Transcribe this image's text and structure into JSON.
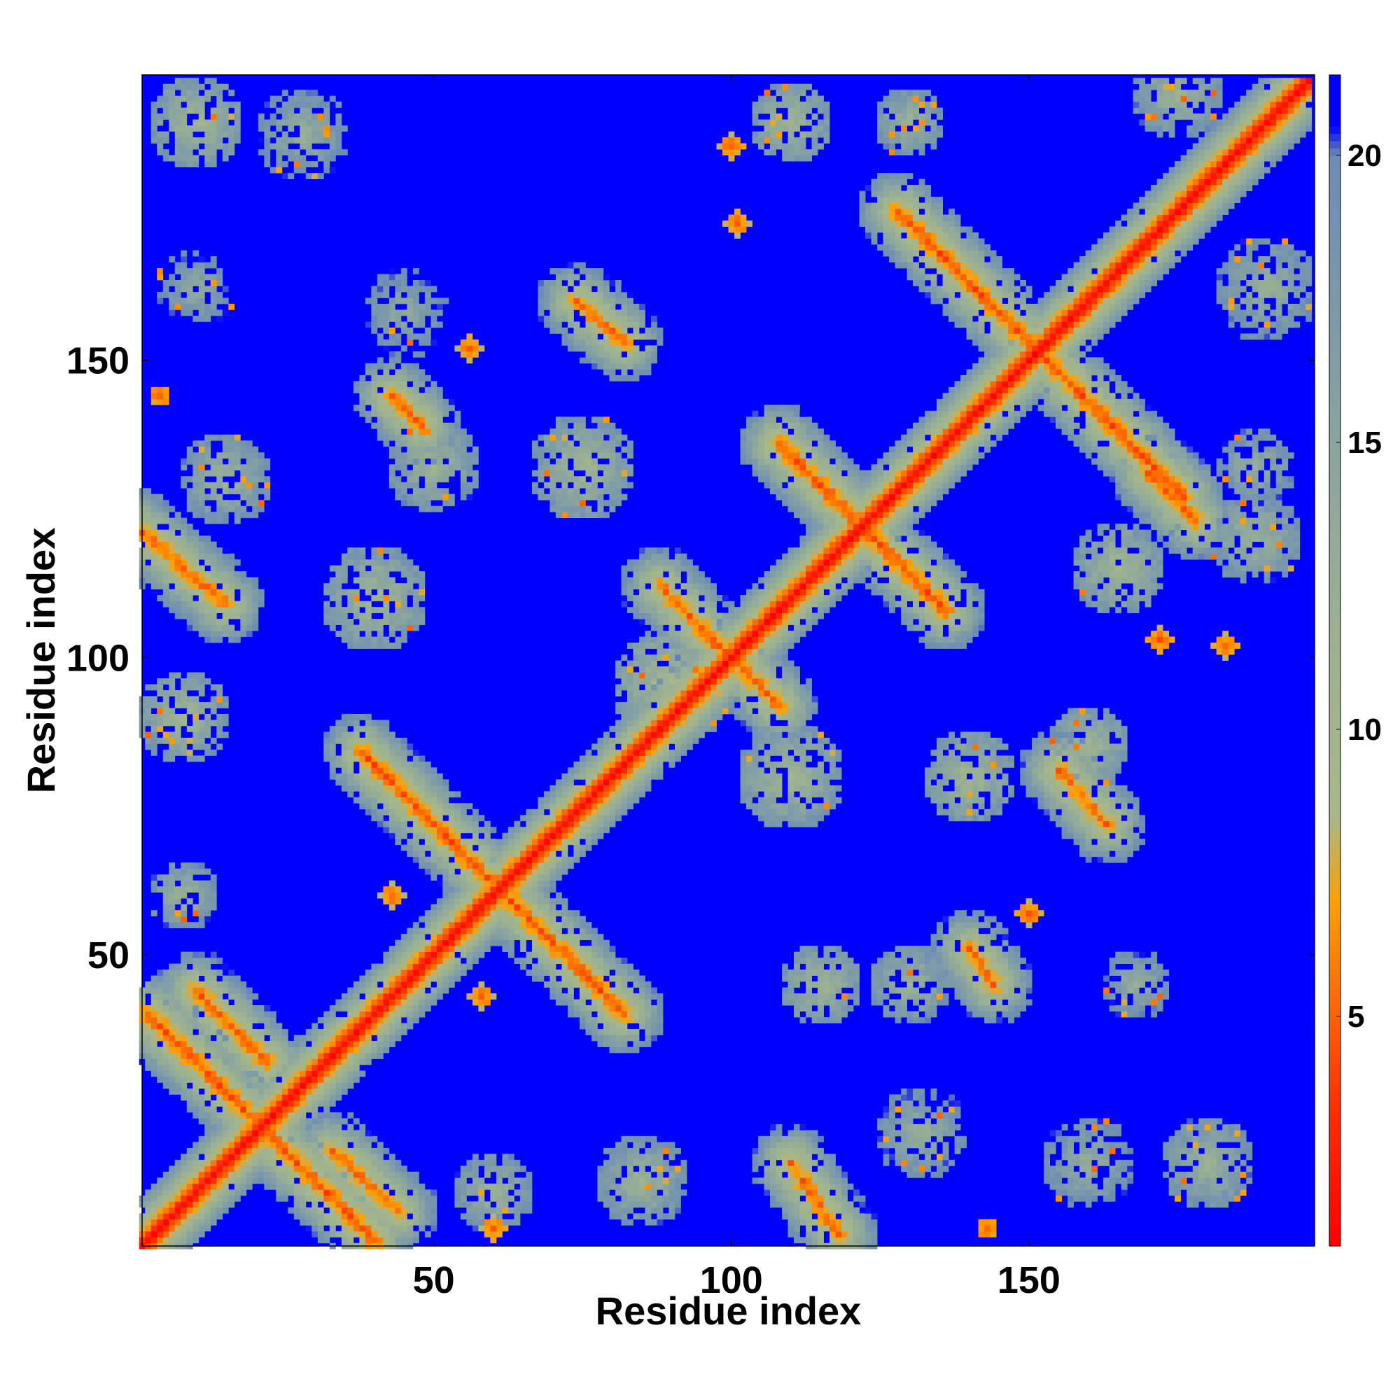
{
  "chart_data": {
    "type": "heatmap",
    "title": "",
    "xlabel": "Residue index",
    "ylabel": "Residue index",
    "xlim": [
      1,
      198
    ],
    "ylim": [
      1,
      198
    ],
    "n_residues": 197,
    "xticks": [
      50,
      100,
      150
    ],
    "yticks": [
      50,
      100,
      150
    ],
    "colorbar": {
      "ticks": [
        5,
        10,
        15,
        20
      ],
      "range": [
        1,
        21.4
      ],
      "stops": [
        {
          "value": 1,
          "color": "#ff0000"
        },
        {
          "value": 3.5,
          "color": "#ff3000"
        },
        {
          "value": 5,
          "color": "#ff6000"
        },
        {
          "value": 7,
          "color": "#ffa000"
        },
        {
          "value": 8.5,
          "color": "#a8b888"
        },
        {
          "value": 12,
          "color": "#9ab092"
        },
        {
          "value": 16,
          "color": "#84a0a4"
        },
        {
          "value": 20,
          "color": "#6d8cb4"
        },
        {
          "value": 20.5,
          "color": "#0000ff"
        }
      ]
    },
    "background_value": 21,
    "diagonal": {
      "start": 1,
      "end": 198
    },
    "contact_segments": [
      {
        "x1": 2,
        "y1": 40,
        "x2": 40,
        "y2": 2,
        "min": 3.5
      },
      {
        "x1": 10,
        "y1": 44,
        "x2": 22,
        "y2": 32,
        "min": 4
      },
      {
        "x1": 33,
        "y1": 17,
        "x2": 44,
        "y2": 7,
        "min": 4
      },
      {
        "x1": 38,
        "y1": 84,
        "x2": 82,
        "y2": 40,
        "min": 3.5
      },
      {
        "x1": 88,
        "y1": 112,
        "x2": 108,
        "y2": 92,
        "min": 4
      },
      {
        "x1": 108,
        "y1": 136,
        "x2": 136,
        "y2": 108,
        "min": 3.5
      },
      {
        "x1": 128,
        "y1": 175,
        "x2": 176,
        "y2": 127,
        "min": 3.5
      },
      {
        "x1": 74,
        "y1": 160,
        "x2": 82,
        "y2": 153,
        "min": 4
      },
      {
        "x1": 110,
        "y1": 15,
        "x2": 118,
        "y2": 3,
        "min": 4
      },
      {
        "x1": 0,
        "y1": 122,
        "x2": 15,
        "y2": 109,
        "min": 4
      },
      {
        "x1": 170,
        "y1": 131,
        "x2": 178,
        "y2": 123,
        "min": 4
      },
      {
        "x1": 155,
        "y1": 81,
        "x2": 163,
        "y2": 72,
        "min": 4
      },
      {
        "x1": 140,
        "y1": 51,
        "x2": 144,
        "y2": 45,
        "min": 4
      },
      {
        "x1": 43,
        "y1": 144,
        "x2": 48,
        "y2": 139,
        "min": 4
      }
    ],
    "contact_blobs": [
      {
        "x": 10,
        "y": 190,
        "w": 8,
        "min": 9
      },
      {
        "x": 28,
        "y": 188,
        "w": 8,
        "min": 11
      },
      {
        "x": 10,
        "y": 162,
        "w": 7,
        "min": 12
      },
      {
        "x": 45,
        "y": 158,
        "w": 8,
        "min": 12
      },
      {
        "x": 75,
        "y": 132,
        "w": 9,
        "min": 9
      },
      {
        "x": 110,
        "y": 190,
        "w": 7,
        "min": 9
      },
      {
        "x": 130,
        "y": 190,
        "w": 6,
        "min": 10
      },
      {
        "x": 175,
        "y": 195,
        "w": 8,
        "min": 10
      },
      {
        "x": 190,
        "y": 162,
        "w": 9,
        "min": 11
      },
      {
        "x": 165,
        "y": 115,
        "w": 8,
        "min": 9
      },
      {
        "x": 188,
        "y": 120,
        "w": 8,
        "min": 10
      },
      {
        "x": 188,
        "y": 132,
        "w": 7,
        "min": 11
      },
      {
        "x": 110,
        "y": 80,
        "w": 9,
        "min": 9
      },
      {
        "x": 140,
        "y": 80,
        "w": 8,
        "min": 9
      },
      {
        "x": 160,
        "y": 85,
        "w": 7,
        "min": 9
      },
      {
        "x": 115,
        "y": 45,
        "w": 7,
        "min": 9
      },
      {
        "x": 130,
        "y": 45,
        "w": 7,
        "min": 10
      },
      {
        "x": 168,
        "y": 45,
        "w": 6,
        "min": 11
      },
      {
        "x": 180,
        "y": 15,
        "w": 8,
        "min": 10
      },
      {
        "x": 160,
        "y": 15,
        "w": 8,
        "min": 11
      },
      {
        "x": 85,
        "y": 12,
        "w": 8,
        "min": 10
      },
      {
        "x": 60,
        "y": 10,
        "w": 7,
        "min": 10
      },
      {
        "x": 8,
        "y": 90,
        "w": 8,
        "min": 9
      },
      {
        "x": 8,
        "y": 60,
        "w": 6,
        "min": 10
      },
      {
        "x": 40,
        "y": 110,
        "w": 9,
        "min": 9
      },
      {
        "x": 15,
        "y": 130,
        "w": 8,
        "min": 10
      },
      {
        "x": 50,
        "y": 132,
        "w": 8,
        "min": 10
      },
      {
        "x": 90,
        "y": 95,
        "w": 10,
        "min": 8
      },
      {
        "x": 132,
        "y": 20,
        "w": 8,
        "min": 11
      }
    ],
    "isolated_contacts": [
      {
        "x": 100,
        "y": 186,
        "w": 1.5,
        "min": 4
      },
      {
        "x": 101,
        "y": 173,
        "w": 1.5,
        "min": 4
      },
      {
        "x": 56,
        "y": 152,
        "w": 1.5,
        "min": 4
      },
      {
        "x": 4,
        "y": 144,
        "w": 1,
        "min": 4
      },
      {
        "x": 43,
        "y": 60,
        "w": 1.5,
        "min": 4
      },
      {
        "x": 58,
        "y": 43,
        "w": 1.5,
        "min": 4
      },
      {
        "x": 150,
        "y": 57,
        "w": 1.5,
        "min": 4
      },
      {
        "x": 172,
        "y": 103,
        "w": 1.5,
        "min": 4
      },
      {
        "x": 183,
        "y": 102,
        "w": 1.5,
        "min": 4
      },
      {
        "x": 60,
        "y": 4,
        "w": 1.5,
        "min": 4
      },
      {
        "x": 143,
        "y": 4,
        "w": 1,
        "min": 4
      }
    ]
  }
}
